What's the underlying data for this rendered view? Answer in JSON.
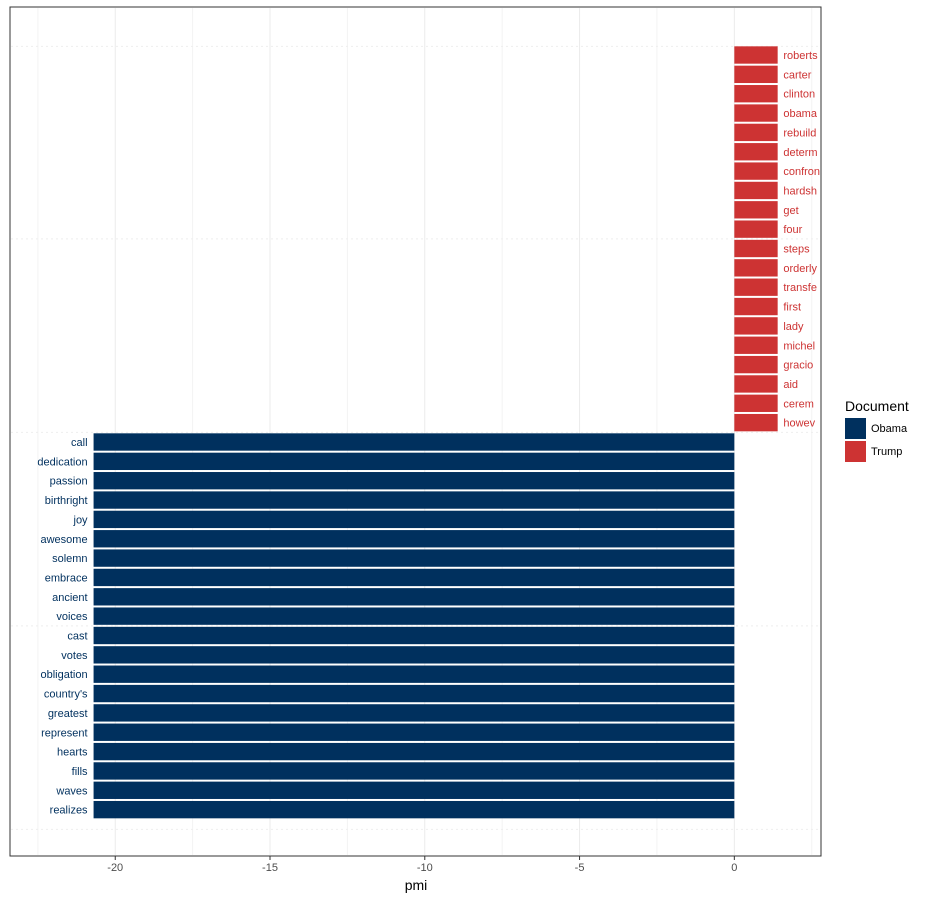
{
  "chart_data": {
    "type": "bar",
    "orientation": "horizontal",
    "xlabel": "pmi",
    "xlim": [
      -23.4,
      2.8
    ],
    "xticks": [
      -20,
      -15,
      -10,
      -5,
      0
    ],
    "xtick_labels": [
      "-20",
      "-15",
      "-10",
      "-5",
      "0"
    ],
    "grid": true,
    "legend": {
      "title": "Document",
      "position": "right",
      "entries": [
        {
          "label": "Obama",
          "color": "#00305e"
        },
        {
          "label": "Trump",
          "color": "#cd3333"
        }
      ]
    },
    "series": [
      {
        "name": "Trump",
        "color": "#cd3333",
        "categories": [
          "roberts",
          "carter",
          "clinton",
          "obama",
          "rebuild",
          "determ",
          "confron",
          "hardsh",
          "get",
          "four",
          "steps",
          "orderly",
          "transfe",
          "first",
          "lady",
          "michel",
          "gracio",
          "aid",
          "cerem",
          "howev"
        ],
        "values": [
          1.4,
          1.4,
          1.4,
          1.4,
          1.4,
          1.4,
          1.4,
          1.4,
          1.4,
          1.4,
          1.4,
          1.4,
          1.4,
          1.4,
          1.4,
          1.4,
          1.4,
          1.4,
          1.4,
          1.4
        ]
      },
      {
        "name": "Obama",
        "color": "#00305e",
        "categories": [
          "call",
          "dedication",
          "passion",
          "birthright",
          "joy",
          "awesome",
          "solemn",
          "embrace",
          "ancient",
          "voices",
          "cast",
          "votes",
          "obligation",
          "country's",
          "greatest",
          "represent",
          "hearts",
          "fills",
          "waves",
          "realizes"
        ],
        "values": [
          -20.7,
          -20.7,
          -20.7,
          -20.7,
          -20.7,
          -20.7,
          -20.7,
          -20.7,
          -20.7,
          -20.7,
          -20.7,
          -20.7,
          -20.7,
          -20.7,
          -20.7,
          -20.7,
          -20.7,
          -20.7,
          -20.7,
          -20.7
        ]
      }
    ]
  }
}
